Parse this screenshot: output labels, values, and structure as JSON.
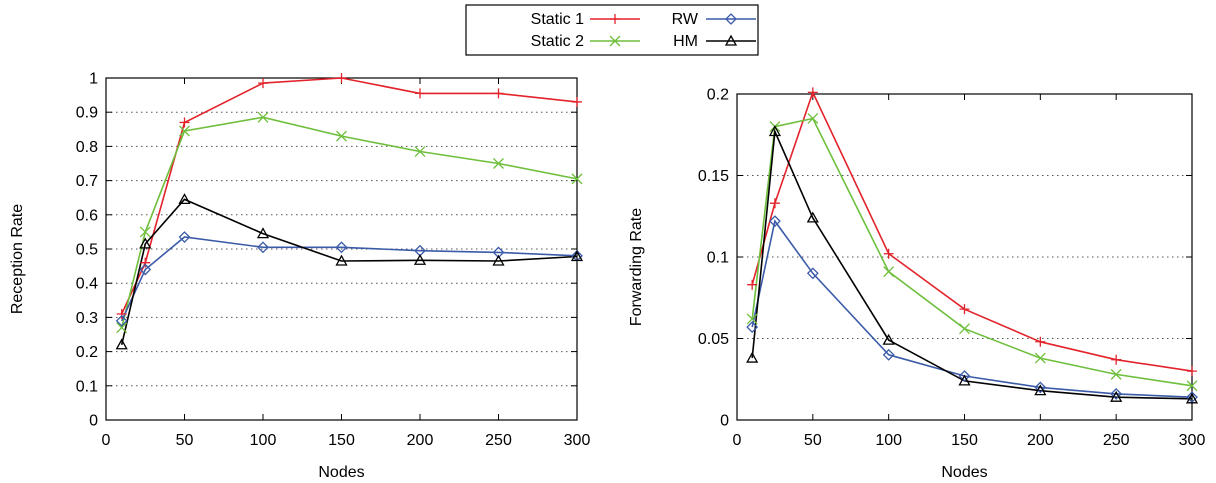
{
  "legend": {
    "entries": [
      {
        "label": "Static 1",
        "series": "static1"
      },
      {
        "label": "Static 2",
        "series": "static2"
      },
      {
        "label": "RW",
        "series": "rw"
      },
      {
        "label": "HM",
        "series": "hm"
      }
    ]
  },
  "series_styles": {
    "static1": {
      "color": "#e3232b",
      "marker": "plus"
    },
    "static2": {
      "color": "#6ebf3c",
      "marker": "cross"
    },
    "rw": {
      "color": "#3b5ba8",
      "marker": "diamond"
    },
    "hm": {
      "color": "#000000",
      "marker": "triangle"
    }
  },
  "chart_data": [
    {
      "type": "line",
      "title": "",
      "xlabel": "Nodes",
      "ylabel": "Reception Rate",
      "xlim": [
        0,
        300
      ],
      "ylim": [
        0,
        1
      ],
      "xticks": [
        0,
        50,
        100,
        150,
        200,
        250,
        300
      ],
      "yticks": [
        0,
        0.1,
        0.2,
        0.3,
        0.4,
        0.5,
        0.6,
        0.7,
        0.8,
        0.9,
        1
      ],
      "ytick_labels": [
        "0",
        "0.1",
        "0.2",
        "0.3",
        "0.4",
        "0.5",
        "0.6",
        "0.7",
        "0.8",
        "0.9",
        "1"
      ],
      "grid": "horizontal dotted",
      "x": [
        10,
        25,
        50,
        100,
        150,
        200,
        250,
        300
      ],
      "series": [
        {
          "key": "static1",
          "name": "Static 1",
          "values": [
            0.31,
            0.46,
            0.87,
            0.985,
            1.0,
            0.955,
            0.955,
            0.93
          ]
        },
        {
          "key": "static2",
          "name": "Static 2",
          "values": [
            0.27,
            0.55,
            0.845,
            0.885,
            0.83,
            0.785,
            0.75,
            0.705
          ]
        },
        {
          "key": "rw",
          "name": "RW",
          "values": [
            0.29,
            0.44,
            0.535,
            0.505,
            0.505,
            0.495,
            0.49,
            0.48
          ]
        },
        {
          "key": "hm",
          "name": "HM",
          "values": [
            0.22,
            0.515,
            0.645,
            0.545,
            0.465,
            0.467,
            0.465,
            0.478
          ]
        }
      ]
    },
    {
      "type": "line",
      "title": "",
      "xlabel": "Nodes",
      "ylabel": "Forwarding Rate",
      "xlim": [
        0,
        300
      ],
      "ylim": [
        0,
        0.2
      ],
      "xticks": [
        0,
        50,
        100,
        150,
        200,
        250,
        300
      ],
      "yticks": [
        0,
        0.05,
        0.1,
        0.15,
        0.2
      ],
      "ytick_labels": [
        "0",
        "0.05",
        "0.1",
        "0.15",
        "0.2"
      ],
      "grid": "horizontal dotted",
      "x": [
        10,
        25,
        50,
        100,
        150,
        200,
        250,
        300
      ],
      "series": [
        {
          "key": "static1",
          "name": "Static 1",
          "values": [
            0.083,
            0.133,
            0.201,
            0.102,
            0.068,
            0.048,
            0.037,
            0.03
          ]
        },
        {
          "key": "static2",
          "name": "Static 2",
          "values": [
            0.062,
            0.18,
            0.185,
            0.091,
            0.056,
            0.038,
            0.028,
            0.021
          ]
        },
        {
          "key": "rw",
          "name": "RW",
          "values": [
            0.057,
            0.122,
            0.09,
            0.04,
            0.027,
            0.02,
            0.016,
            0.014
          ]
        },
        {
          "key": "hm",
          "name": "HM",
          "values": [
            0.038,
            0.177,
            0.124,
            0.049,
            0.024,
            0.018,
            0.014,
            0.013
          ]
        }
      ]
    }
  ]
}
